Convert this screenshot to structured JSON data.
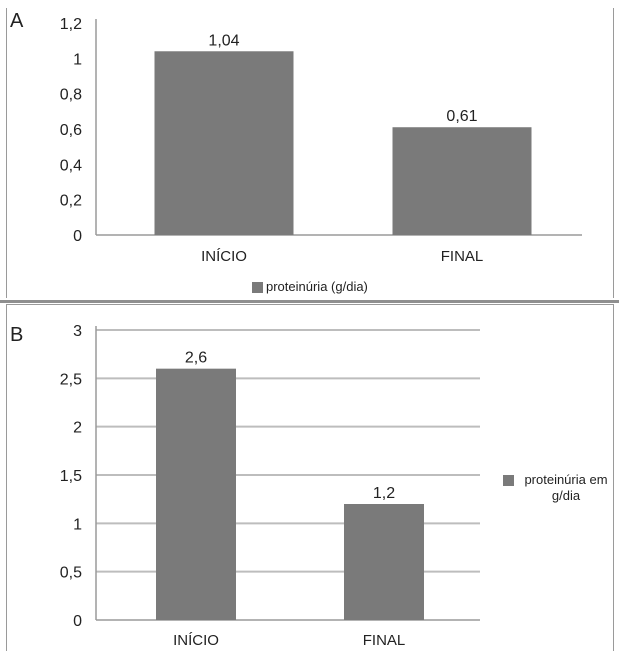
{
  "panels": {
    "a": {
      "label": "A"
    },
    "b": {
      "label": "B"
    }
  },
  "colors": {
    "bar": "#7a7a7a",
    "grid": "#bdbdbd",
    "axis": "#9a9a9a"
  },
  "chart_data": [
    {
      "type": "bar",
      "categories": [
        "INÍCIO",
        "FINAL"
      ],
      "series": [
        {
          "name": "proteinúria (g/dia)",
          "values": [
            1.04,
            0.61
          ]
        }
      ],
      "data_labels": [
        "1,04",
        "0,61"
      ],
      "yticks": [
        "0",
        "0,2",
        "0,4",
        "0,6",
        "0,8",
        "1",
        "1,2"
      ],
      "ylim": [
        0,
        1.2
      ],
      "grid": false,
      "legend_position": "bottom"
    },
    {
      "type": "bar",
      "categories": [
        "INÍCIO",
        "FINAL"
      ],
      "series": [
        {
          "name": "proteinúria em g/dia",
          "values": [
            2.6,
            1.2
          ]
        }
      ],
      "data_labels": [
        "2,6",
        "1,2"
      ],
      "yticks": [
        "0",
        "0,5",
        "1",
        "1,5",
        "2",
        "2,5",
        "3"
      ],
      "ylim": [
        0,
        3
      ],
      "grid": true,
      "legend_position": "right"
    }
  ]
}
